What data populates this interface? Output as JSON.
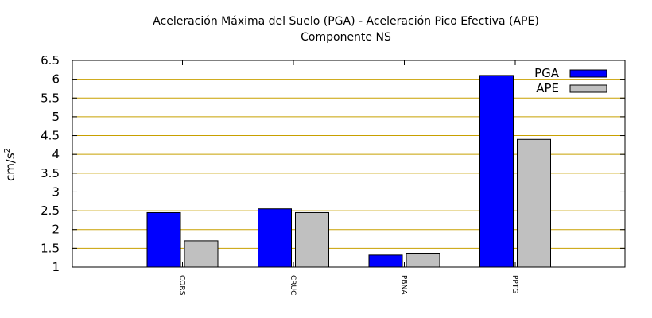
{
  "chart_data": {
    "type": "bar",
    "title": "Aceleración Máxima del Suelo (PGA) -  Aceleración Pico Efectiva (APE)",
    "subtitle": "Componente NS",
    "ylabel": "cm/s",
    "ylabel_superscript": "2",
    "xlabel": "",
    "ylim": [
      1,
      6.5
    ],
    "yticks": [
      1,
      1.5,
      2,
      2.5,
      3,
      3.5,
      4,
      4.5,
      5,
      5.5,
      6,
      6.5
    ],
    "ytick_labels": [
      "1",
      "1.5",
      "2",
      "2.5",
      "3",
      "3.5",
      "4",
      "4.5",
      "5",
      "5.5",
      "6",
      "6.5"
    ],
    "categories": [
      "CORS",
      "CRUC",
      "PBNA",
      "PPTG"
    ],
    "series": [
      {
        "name": "PGA",
        "color": "#0000ff",
        "values": [
          2.45,
          2.55,
          1.32,
          6.1
        ]
      },
      {
        "name": "APE",
        "color": "#c0c0c0",
        "values": [
          1.7,
          2.45,
          1.37,
          4.4
        ]
      }
    ],
    "grid": true,
    "grid_color": "#c8a000",
    "legend_placement": "top-right"
  }
}
